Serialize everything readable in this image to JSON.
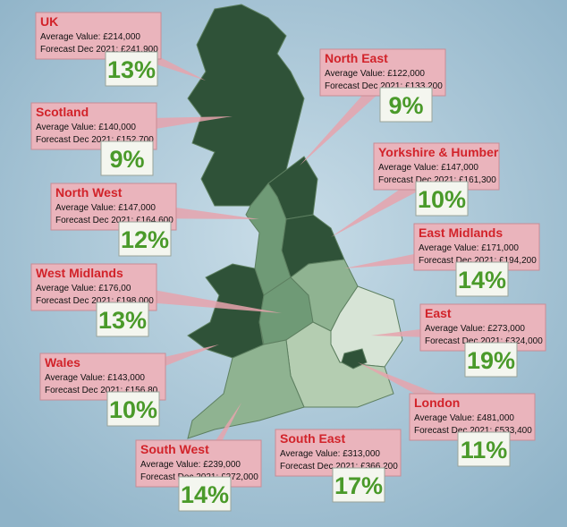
{
  "regions": [
    {
      "name": "UK",
      "average": "Average Value: £214,000",
      "forecast": "Forecast Dec 2021: £241,900",
      "growth": "13%"
    },
    {
      "name": "North East",
      "average": "Average Value: £122,000",
      "forecast": "Forecast Dec 2021: £133,200",
      "growth": "9%"
    },
    {
      "name": "Scotland",
      "average": "Average Value: £140,000",
      "forecast": "Forecast Dec 2021: £152,700",
      "growth": "9%"
    },
    {
      "name": "Yorkshire & Humber",
      "average": "Average Value: £147,000",
      "forecast": "Forecast Dec 2021: £161,300",
      "growth": "10%"
    },
    {
      "name": "North West",
      "average": "Average Value: £147,000",
      "forecast": "Forecast Dec 2021: £164,600",
      "growth": "12%"
    },
    {
      "name": "East Midlands",
      "average": "Average Value: £171,000",
      "forecast": "Forecast Dec 2021: £194,200",
      "growth": "14%"
    },
    {
      "name": "West Midlands",
      "average": "Average Value: £176,00",
      "forecast": "Forecast Dec 2021: £198,000",
      "growth": "13%"
    },
    {
      "name": "East",
      "average": "Average Value: £273,000",
      "forecast": "Forecast Dec 2021: £324,000",
      "growth": "19%"
    },
    {
      "name": "Wales",
      "average": "Average Value: £143,000",
      "forecast": "Forecast Dec 2021: £156,80",
      "growth": "10%"
    },
    {
      "name": "London",
      "average": "Average Value: £481,000",
      "forecast": "Forecast Dec 2021: £533,400",
      "growth": "11%"
    },
    {
      "name": "South West",
      "average": "Average Value: £239,000",
      "forecast": "Forecast Dec 2021: £272,000",
      "growth": "14%"
    },
    {
      "name": "South East",
      "average": "Average Value: £313,000",
      "forecast": "Forecast Dec 2021: £366,200",
      "growth": "17%"
    }
  ]
}
